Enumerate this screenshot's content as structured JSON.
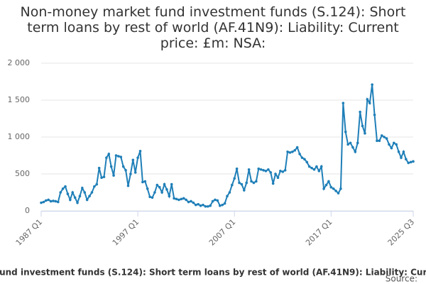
{
  "chart_data": {
    "type": "line",
    "title": "Non-money market fund investment funds (S.124): Short term loans by rest of world (AF.41N9): Liability: Current price: £m: NSA:",
    "source": "Source:",
    "categories": [
      "1987 Q1",
      null,
      null,
      null,
      null,
      null,
      null,
      null,
      null,
      null,
      null,
      null,
      null,
      null,
      null,
      null,
      null,
      null,
      null,
      null,
      null,
      null,
      null,
      null,
      null,
      null,
      null,
      null,
      null,
      null,
      null,
      null,
      null,
      null,
      null,
      null,
      null,
      null,
      null,
      null,
      "1997 Q1",
      null,
      null,
      null,
      null,
      null,
      null,
      null,
      null,
      null,
      null,
      null,
      null,
      null,
      null,
      null,
      null,
      null,
      null,
      null,
      null,
      null,
      null,
      null,
      null,
      null,
      null,
      null,
      null,
      null,
      null,
      null,
      null,
      null,
      null,
      null,
      null,
      null,
      null,
      null,
      "2007 Q1",
      null,
      null,
      null,
      null,
      null,
      null,
      null,
      null,
      null,
      null,
      null,
      null,
      null,
      null,
      null,
      null,
      null,
      null,
      null,
      null,
      null,
      null,
      null,
      null,
      null,
      null,
      null,
      null,
      null,
      null,
      null,
      null,
      null,
      null,
      null,
      null,
      null,
      null,
      null,
      "2017 Q1",
      null,
      null,
      null,
      null,
      null,
      null,
      null,
      null,
      null,
      null,
      null,
      null,
      null,
      null,
      null,
      null,
      null,
      null,
      null,
      null,
      null,
      null,
      null,
      null,
      null,
      null,
      null,
      null,
      null,
      null,
      null,
      null,
      null,
      "2025 Q3"
    ],
    "series": [
      {
        "name": "Non-money market fund investment funds (S.124): Short term loans by rest of world (AF.41N9): Liability: Current price: £m: NSA:",
        "color": "#1f7fb8",
        "values": [
          110,
          120,
          140,
          150,
          130,
          135,
          130,
          120,
          250,
          300,
          330,
          230,
          150,
          250,
          180,
          110,
          200,
          310,
          250,
          150,
          200,
          250,
          330,
          360,
          580,
          450,
          460,
          720,
          770,
          600,
          480,
          750,
          740,
          730,
          600,
          550,
          340,
          500,
          690,
          520,
          720,
          810,
          390,
          400,
          300,
          190,
          180,
          250,
          350,
          320,
          250,
          360,
          290,
          200,
          360,
          170,
          160,
          150,
          160,
          170,
          150,
          120,
          130,
          110,
          80,
          90,
          70,
          80,
          60,
          60,
          70,
          130,
          150,
          140,
          70,
          80,
          100,
          200,
          250,
          350,
          440,
          570,
          380,
          360,
          280,
          380,
          560,
          400,
          380,
          400,
          570,
          560,
          550,
          540,
          560,
          520,
          370,
          500,
          450,
          540,
          530,
          550,
          800,
          790,
          800,
          820,
          860,
          770,
          720,
          700,
          660,
          600,
          580,
          560,
          600,
          540,
          600,
          300,
          350,
          400,
          320,
          300,
          270,
          240,
          300,
          1460,
          1070,
          900,
          920,
          860,
          800,
          920,
          1340,
          1150,
          1050,
          1510,
          1460,
          1710,
          1300,
          950,
          950,
          1020,
          1000,
          980,
          900,
          850,
          920,
          900,
          800,
          720,
          800,
          700,
          650,
          660,
          670
        ]
      }
    ],
    "ylim": [
      0,
      2000
    ],
    "yticks": [
      0,
      500,
      {
        "value": 1000,
        "label": "1 000"
      },
      {
        "value": 1500,
        "label": "1 500"
      },
      {
        "value": 2000,
        "label": "2 000"
      }
    ],
    "grid": true
  }
}
